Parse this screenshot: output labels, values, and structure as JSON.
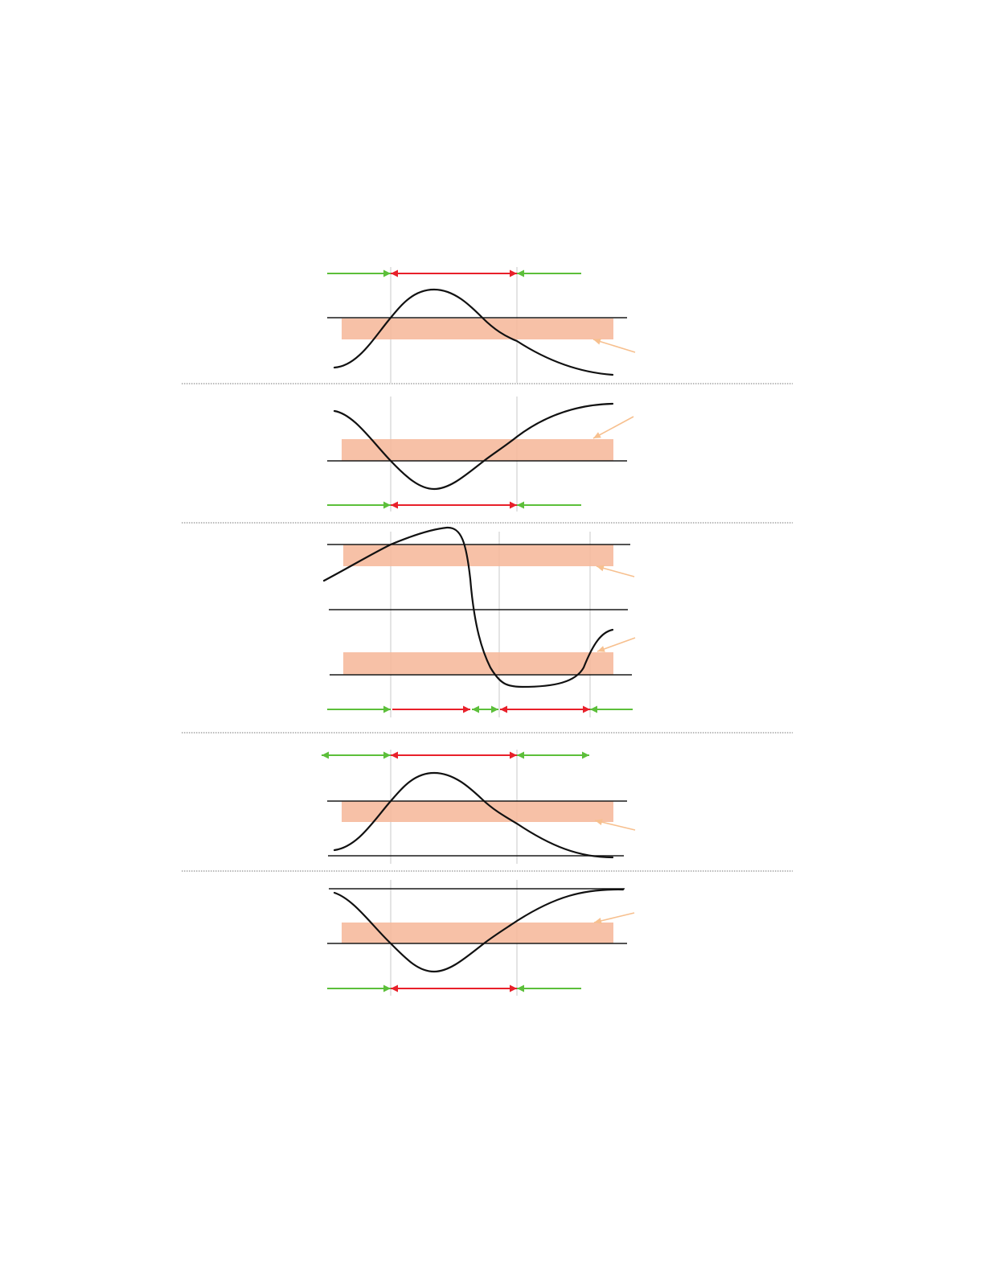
{
  "colors": {
    "band": "#f6b89b",
    "band_opacity": 0.88,
    "allowed_arrow": "#5cbf3a",
    "forbidden_arrow": "#e8202a",
    "callout_arrow": "#f7c08f",
    "curve": "#111111"
  },
  "panels": [
    {
      "id": "panel-1",
      "arrow_segments": [
        {
          "kind": "allowed",
          "ends": "right"
        },
        {
          "kind": "forbidden",
          "ends": "both"
        },
        {
          "kind": "allowed",
          "ends": "left"
        }
      ]
    },
    {
      "id": "panel-2",
      "arrow_segments": [
        {
          "kind": "allowed",
          "ends": "right"
        },
        {
          "kind": "forbidden",
          "ends": "both"
        },
        {
          "kind": "allowed",
          "ends": "left"
        }
      ]
    },
    {
      "id": "panel-3",
      "arrow_segments": [
        {
          "kind": "allowed",
          "ends": "right"
        },
        {
          "kind": "forbidden",
          "ends": "right"
        },
        {
          "kind": "allowed",
          "ends": "both"
        },
        {
          "kind": "forbidden",
          "ends": "both"
        },
        {
          "kind": "allowed",
          "ends": "left"
        }
      ]
    },
    {
      "id": "panel-4",
      "arrow_segments": [
        {
          "kind": "allowed",
          "ends": "both"
        },
        {
          "kind": "forbidden",
          "ends": "both"
        },
        {
          "kind": "allowed",
          "ends": "both"
        }
      ]
    },
    {
      "id": "panel-5",
      "arrow_segments": [
        {
          "kind": "allowed",
          "ends": "right"
        },
        {
          "kind": "forbidden",
          "ends": "both"
        },
        {
          "kind": "allowed",
          "ends": "left"
        }
      ]
    }
  ]
}
